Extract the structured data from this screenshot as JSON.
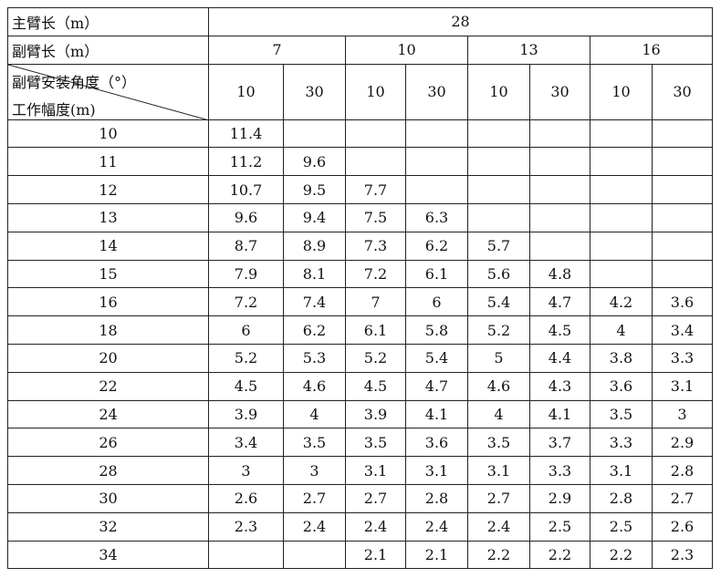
{
  "table": {
    "header": {
      "main_arm_label": "主臂长（m）",
      "main_arm_value": "28",
      "jib_label": "副臂长（m）",
      "jib_lengths": [
        "7",
        "10",
        "13",
        "16"
      ],
      "angle_label": "副臂安装角度（°）",
      "radius_label": "工作幅度(m)",
      "angles": [
        "10",
        "30",
        "10",
        "30",
        "10",
        "30",
        "10",
        "30"
      ]
    },
    "rows": [
      {
        "radius": "10",
        "values": [
          "11.4",
          null,
          null,
          null,
          null,
          null,
          null,
          null
        ]
      },
      {
        "radius": "11",
        "values": [
          "11.2",
          "9.6",
          null,
          null,
          null,
          null,
          null,
          null
        ]
      },
      {
        "radius": "12",
        "values": [
          "10.7",
          "9.5",
          "7.7",
          null,
          null,
          null,
          null,
          null
        ]
      },
      {
        "radius": "13",
        "values": [
          "9.6",
          "9.4",
          "7.5",
          "6.3",
          null,
          null,
          null,
          null
        ]
      },
      {
        "radius": "14",
        "values": [
          "8.7",
          "8.9",
          "7.3",
          "6.2",
          "5.7",
          null,
          null,
          null
        ]
      },
      {
        "radius": "15",
        "values": [
          "7.9",
          "8.1",
          "7.2",
          "6.1",
          "5.6",
          "4.8",
          null,
          null
        ]
      },
      {
        "radius": "16",
        "values": [
          "7.2",
          "7.4",
          "7",
          "6",
          "5.4",
          "4.7",
          "4.2",
          "3.6"
        ]
      },
      {
        "radius": "18",
        "values": [
          "6",
          "6.2",
          "6.1",
          "5.8",
          "5.2",
          "4.5",
          "4",
          "3.4"
        ]
      },
      {
        "radius": "20",
        "values": [
          "5.2",
          "5.3",
          "5.2",
          "5.4",
          "5",
          "4.4",
          "3.8",
          "3.3"
        ]
      },
      {
        "radius": "22",
        "values": [
          "4.5",
          "4.6",
          "4.5",
          "4.7",
          "4.6",
          "4.3",
          "3.6",
          "3.1"
        ]
      },
      {
        "radius": "24",
        "values": [
          "3.9",
          "4",
          "3.9",
          "4.1",
          "4",
          "4.1",
          "3.5",
          "3"
        ]
      },
      {
        "radius": "26",
        "values": [
          "3.4",
          "3.5",
          "3.5",
          "3.6",
          "3.5",
          "3.7",
          "3.3",
          "2.9"
        ]
      },
      {
        "radius": "28",
        "values": [
          "3",
          "3",
          "3.1",
          "3.1",
          "3.1",
          "3.3",
          "3.1",
          "2.8"
        ]
      },
      {
        "radius": "30",
        "values": [
          "2.6",
          "2.7",
          "2.7",
          "2.8",
          "2.7",
          "2.9",
          "2.8",
          "2.7"
        ]
      },
      {
        "radius": "32",
        "values": [
          "2.3",
          "2.4",
          "2.4",
          "2.4",
          "2.4",
          "2.5",
          "2.5",
          "2.6"
        ]
      },
      {
        "radius": "34",
        "values": [
          null,
          null,
          "2.1",
          "2.1",
          "2.2",
          "2.2",
          "2.2",
          "2.3"
        ]
      }
    ]
  }
}
